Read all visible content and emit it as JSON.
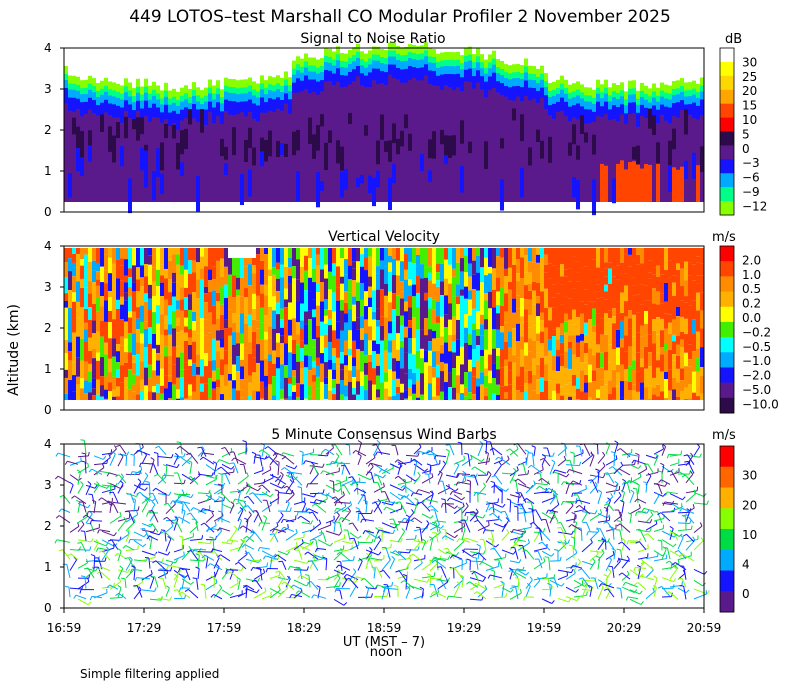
{
  "title": "449 LOTOS–test Marshall CO Modular Profiler  2 November 2025",
  "ylabel": "Altitude (km)",
  "xaxis": {
    "label": "UT  (MST – 7)",
    "noon_label": "noon",
    "ticks": [
      "16:59",
      "17:29",
      "17:59",
      "18:29",
      "18:59",
      "19:29",
      "19:59",
      "20:29",
      "20:59"
    ],
    "noon_tick": "18:59"
  },
  "note": "Simple filtering applied",
  "chart_data": [
    {
      "type": "heatmap",
      "title": "Signal to Noise Ratio",
      "unit": "dB",
      "ylim": [
        0,
        4
      ],
      "yticks": [
        "0",
        "1",
        "2",
        "3",
        "4"
      ],
      "colorbar_labels": [
        "30",
        "25",
        "20",
        "15",
        "10",
        "5",
        "0",
        "−3",
        "−6",
        "−9",
        "−12"
      ],
      "colorbar_colors": [
        "#ffffff",
        "#ffff00",
        "#ffd700",
        "#ffa500",
        "#ff4500",
        "#ff0000",
        "#2d0a4a",
        "#5b1a8c",
        "#1414ff",
        "#00aaff",
        "#00ff88",
        "#88ff00"
      ],
      "colors": {
        "top_region": [
          "#88ff00",
          "#00ff88",
          "#00aaff"
        ],
        "middle": [
          "#1414ff",
          "#5b1a8c",
          "#2d0a4a"
        ],
        "hotspot": "#ff4500"
      }
    },
    {
      "type": "heatmap",
      "title": "Vertical Velocity",
      "unit": "m/s",
      "ylim": [
        0,
        4
      ],
      "yticks": [
        "0",
        "1",
        "2",
        "3",
        "4"
      ],
      "colorbar_labels": [
        "2.0",
        "1.0",
        "0.5",
        "0.2",
        "0.0",
        "−0.2",
        "−0.5",
        "−1.0",
        "−2.0",
        "−5.0",
        "−10.0"
      ],
      "colorbar_colors": [
        "#ff0000",
        "#ff4500",
        "#ff8c00",
        "#ffb000",
        "#ffff00",
        "#44ee00",
        "#00ffff",
        "#00aaff",
        "#1414ff",
        "#5b1a8c",
        "#2d0a4a"
      ]
    },
    {
      "type": "scatter",
      "title": "5 Minute Consensus Wind Barbs",
      "unit": "m/s",
      "ylim": [
        0,
        4
      ],
      "yticks": [
        "0",
        "1",
        "2",
        "3",
        "4"
      ],
      "colorbar_labels": [
        "30",
        "20",
        "10",
        "4",
        "0"
      ],
      "colorbar_colors": [
        "#ff0000",
        "#ff6600",
        "#ffb000",
        "#88ff00",
        "#00dd44",
        "#00aaff",
        "#1414ff",
        "#5b1a8c"
      ]
    }
  ]
}
